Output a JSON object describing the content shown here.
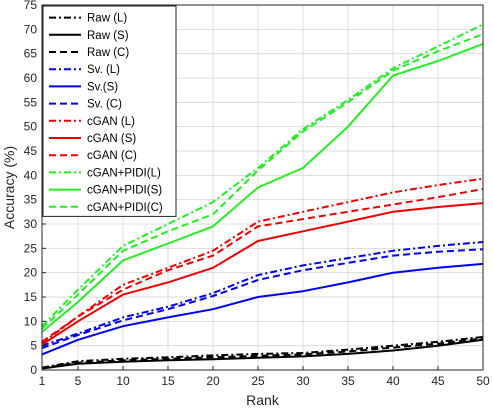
{
  "chart_data": {
    "type": "line",
    "title": "",
    "xlabel": "Rank",
    "ylabel": "Accuracy (%)",
    "xlim": [
      1,
      50
    ],
    "ylim": [
      0,
      75
    ],
    "xticks": [
      1,
      5,
      10,
      15,
      20,
      25,
      30,
      35,
      40,
      45,
      50
    ],
    "yticks": [
      0,
      5,
      10,
      15,
      20,
      25,
      30,
      35,
      40,
      45,
      50,
      55,
      60,
      65,
      70,
      75
    ],
    "grid": true,
    "legend_position": "top-left",
    "series": [
      {
        "name": "Raw (L)",
        "color": "#000000",
        "style": "dashdot",
        "x": [
          1,
          5,
          10,
          15,
          20,
          25,
          30,
          35,
          40,
          45,
          50
        ],
        "y": [
          0.5,
          1.8,
          2.3,
          2.6,
          3.0,
          3.3,
          3.5,
          4.2,
          5.0,
          5.8,
          6.8
        ]
      },
      {
        "name": "Raw (S)",
        "color": "#000000",
        "style": "solid",
        "x": [
          1,
          5,
          10,
          15,
          20,
          25,
          30,
          35,
          40,
          45,
          50
        ],
        "y": [
          0.3,
          1.3,
          1.7,
          2.0,
          2.2,
          2.5,
          2.8,
          3.3,
          4.0,
          5.0,
          6.2
        ]
      },
      {
        "name": "Raw (C)",
        "color": "#000000",
        "style": "dashed",
        "x": [
          1,
          5,
          10,
          15,
          20,
          25,
          30,
          35,
          40,
          45,
          50
        ],
        "y": [
          0.4,
          1.5,
          2.0,
          2.3,
          2.6,
          2.9,
          3.2,
          3.8,
          4.6,
          5.4,
          6.5
        ]
      },
      {
        "name": "Sv. (L)",
        "color": "#0000ee",
        "style": "dashdot",
        "x": [
          1,
          5,
          10,
          15,
          20,
          25,
          30,
          35,
          40,
          45,
          50
        ],
        "y": [
          5.0,
          7.5,
          10.8,
          13.0,
          15.8,
          19.5,
          21.5,
          23.0,
          24.5,
          25.5,
          26.3
        ]
      },
      {
        "name": "Sv.(S)",
        "color": "#0000ee",
        "style": "solid",
        "x": [
          1,
          5,
          10,
          15,
          20,
          25,
          30,
          35,
          40,
          45,
          50
        ],
        "y": [
          3.2,
          6.2,
          9.0,
          10.8,
          12.5,
          15.0,
          16.2,
          18.0,
          20.0,
          21.0,
          21.8
        ]
      },
      {
        "name": "Sv. (C)",
        "color": "#0000ee",
        "style": "dashed",
        "x": [
          1,
          5,
          10,
          15,
          20,
          25,
          30,
          35,
          40,
          45,
          50
        ],
        "y": [
          4.5,
          7.2,
          10.2,
          12.5,
          15.2,
          18.5,
          20.5,
          22.0,
          23.5,
          24.3,
          24.8
        ]
      },
      {
        "name": "cGAN (L)",
        "color": "#ee0000",
        "style": "dashdot",
        "x": [
          1,
          5,
          10,
          15,
          20,
          25,
          30,
          35,
          40,
          45,
          50
        ],
        "y": [
          5.5,
          11.0,
          17.5,
          21.0,
          24.5,
          30.5,
          32.5,
          34.5,
          36.5,
          38.0,
          39.3
        ]
      },
      {
        "name": "cGAN (S)",
        "color": "#ee0000",
        "style": "solid",
        "x": [
          1,
          5,
          10,
          15,
          20,
          25,
          30,
          35,
          40,
          45,
          50
        ],
        "y": [
          5.2,
          10.0,
          15.5,
          18.0,
          21.0,
          26.5,
          28.5,
          30.5,
          32.5,
          33.5,
          34.3
        ]
      },
      {
        "name": "cGAN (C)",
        "color": "#ee0000",
        "style": "dashed",
        "x": [
          1,
          5,
          10,
          15,
          20,
          25,
          30,
          35,
          40,
          45,
          50
        ],
        "y": [
          5.8,
          11.0,
          16.5,
          20.5,
          23.5,
          29.5,
          31.0,
          32.5,
          34.0,
          35.5,
          37.2
        ]
      },
      {
        "name": "cGAN+PIDI(L)",
        "color": "#22ee22",
        "style": "dashdot",
        "x": [
          1,
          5,
          10,
          15,
          20,
          25,
          30,
          35,
          40,
          45,
          50
        ],
        "y": [
          9.0,
          16.5,
          25.5,
          30.0,
          34.5,
          41.5,
          49.5,
          55.5,
          62.0,
          66.5,
          71.0
        ]
      },
      {
        "name": "cGAN+PIDI(S)",
        "color": "#22ee22",
        "style": "solid",
        "x": [
          1,
          5,
          10,
          15,
          20,
          25,
          30,
          35,
          40,
          45,
          50
        ],
        "y": [
          7.8,
          14.0,
          22.5,
          26.0,
          29.5,
          37.5,
          41.5,
          50.0,
          60.5,
          63.5,
          67.0
        ]
      },
      {
        "name": "cGAN+PIDI(C)",
        "color": "#22ee22",
        "style": "dashed",
        "x": [
          1,
          5,
          10,
          15,
          20,
          25,
          30,
          35,
          40,
          45,
          50
        ],
        "y": [
          8.5,
          15.5,
          24.5,
          28.5,
          32.0,
          41.0,
          49.0,
          55.0,
          61.5,
          65.5,
          69.0
        ]
      }
    ]
  }
}
